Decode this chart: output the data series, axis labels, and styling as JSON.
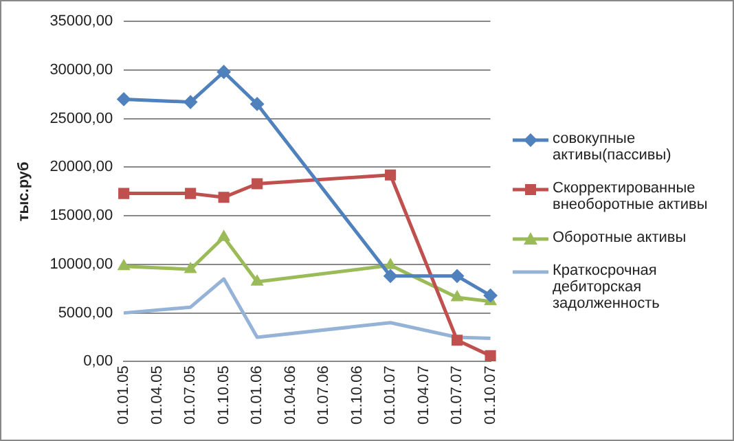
{
  "chart_data": {
    "type": "line",
    "ylabel": "тыс.руб",
    "categories": [
      "01.01.05",
      "01.04.05",
      "01.07.05",
      "01.10.05",
      "01.01.06",
      "01.04.06",
      "01.07.06",
      "01.10.06",
      "01.01.07",
      "01.04.07",
      "01.07.07",
      "01.10.07"
    ],
    "series": [
      {
        "name": "совокупные активы(пассивы)",
        "color": "#4f81bd",
        "marker": "diamond",
        "values": [
          27000,
          null,
          26700,
          29800,
          26500,
          null,
          null,
          null,
          8800,
          null,
          8800,
          6800
        ]
      },
      {
        "name": "Скорректированные внеоборотные активы",
        "color": "#c0504d",
        "marker": "square",
        "values": [
          17300,
          null,
          17300,
          16900,
          18300,
          null,
          null,
          null,
          19200,
          null,
          2200,
          600
        ]
      },
      {
        "name": "Оборотные активы",
        "color": "#9bbb59",
        "marker": "triangle",
        "values": [
          9800,
          null,
          9500,
          12800,
          8200,
          null,
          null,
          null,
          9900,
          null,
          6600,
          6200
        ]
      },
      {
        "name": "Краткосрочная дебиторская задолженность",
        "color": "#95b3d7",
        "marker": "none",
        "values": [
          5000,
          null,
          5600,
          8500,
          2500,
          null,
          null,
          null,
          4000,
          null,
          2500,
          2400
        ]
      }
    ],
    "ylim": [
      0,
      35000
    ],
    "yticks": [
      {
        "value": 0,
        "label": "0,00"
      },
      {
        "value": 5000,
        "label": "5000,00"
      },
      {
        "value": 10000,
        "label": "10000,00"
      },
      {
        "value": 15000,
        "label": "15000,00"
      },
      {
        "value": 20000,
        "label": "20000,00"
      },
      {
        "value": 25000,
        "label": "25000,00"
      },
      {
        "value": 30000,
        "label": "30000,00"
      },
      {
        "value": 35000,
        "label": "35000,00"
      }
    ],
    "grid": "y",
    "legend": "right"
  }
}
